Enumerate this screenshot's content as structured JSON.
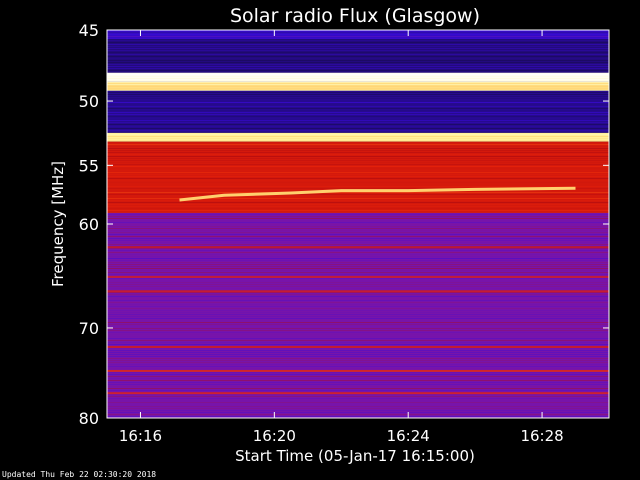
{
  "chart_data": {
    "type": "heatmap",
    "title": "Solar radio Flux (Glasgow)",
    "xlabel": "Start Time (05-Jan-17 16:15:00)",
    "ylabel": "Frequency [MHz]",
    "x_unit": "time (HH:MM)",
    "xlim": [
      "16:15:00",
      "16:30:00"
    ],
    "ylim": [
      45,
      80
    ],
    "y_reversed": true,
    "y_scale": "log",
    "x_ticks": [
      "16:16",
      "16:20",
      "16:24",
      "16:28"
    ],
    "y_ticks": [
      45,
      50,
      55,
      60,
      70,
      80
    ],
    "colormap": [
      "#1a0a5a",
      "#3a0ad8",
      "#7a14a8",
      "#b00a10",
      "#e8220a",
      "#ff9a20",
      "#fff4a0",
      "#ffffff"
    ],
    "bands_mhz": [
      {
        "f0": 45.0,
        "f1": 45.6,
        "level": 0.12
      },
      {
        "f0": 45.6,
        "f1": 47.9,
        "level": 0.04
      },
      {
        "f0": 47.9,
        "f1": 48.6,
        "level": 0.98
      },
      {
        "f0": 48.6,
        "f1": 49.2,
        "level": 0.82
      },
      {
        "f0": 49.2,
        "f1": 52.4,
        "level": 0.06
      },
      {
        "f0": 52.4,
        "f1": 53.1,
        "level": 0.85
      },
      {
        "f0": 53.1,
        "f1": 59.0,
        "level": 0.52
      },
      {
        "f0": 59.0,
        "f1": 80.0,
        "level": 0.28
      }
    ],
    "drift_feature": {
      "points": [
        [
          "16:17:10",
          57.9
        ],
        [
          "16:18:30",
          57.5
        ],
        [
          "16:20:30",
          57.3
        ],
        [
          "16:22:00",
          57.1
        ],
        [
          "16:24:00",
          57.1
        ],
        [
          "16:26:00",
          57.0
        ],
        [
          "16:29:00",
          56.9
        ]
      ],
      "level": 0.8
    }
  },
  "footer": {
    "updated": "Updated Thu Feb 22 02:30:20 2018"
  }
}
